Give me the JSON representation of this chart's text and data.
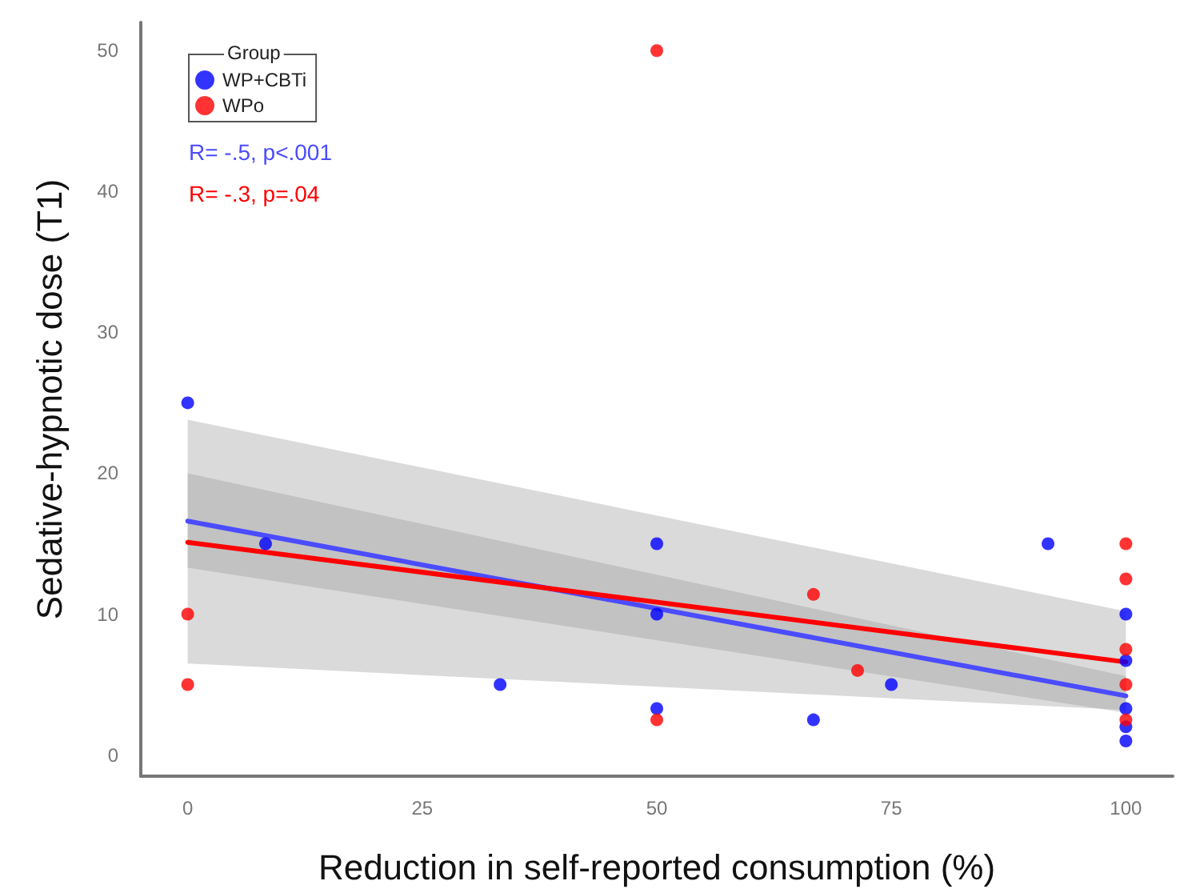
{
  "chart_data": {
    "type": "scatter",
    "xlabel": "Reduction in self-reported consumption (%)",
    "ylabel": "Sedative-hypnotic dose (T1)",
    "legend_title": "Group",
    "legend": "top left",
    "grid": false,
    "xlim": [
      -5,
      105
    ],
    "xticks": [
      0,
      25,
      50,
      75,
      100
    ],
    "ylim": [
      -1.5,
      52
    ],
    "yticks": [
      0,
      10,
      20,
      30,
      40,
      50
    ],
    "annotations": [
      "R= -.5, p<.001",
      "R= -.3, p=.04"
    ],
    "series": [
      {
        "name": "WP+CBTi",
        "marker": "circle",
        "color": "#0000ff",
        "x": [
          0,
          8.3,
          33.3,
          50,
          50,
          50,
          66.7,
          75,
          91.7,
          100,
          100,
          100,
          100,
          100
        ],
        "values": [
          25,
          15,
          5,
          15,
          10,
          3.3,
          2.5,
          5,
          15,
          10,
          6.7,
          3.3,
          2,
          1
        ]
      },
      {
        "name": "WPo",
        "marker": "circle",
        "color": "#ff0000",
        "x": [
          0,
          0,
          50,
          50,
          66.7,
          71.4,
          100,
          100,
          100,
          100,
          100
        ],
        "values": [
          10,
          5,
          50,
          2.5,
          11.4,
          6,
          15,
          12.5,
          7.5,
          5,
          2.5
        ]
      },
      {
        "type": "line",
        "marker": "none",
        "color": "#4b4bff",
        "x": [
          0,
          100
        ],
        "values": [
          16.6,
          4.2
        ],
        "lower": [
          13.3,
          3
        ],
        "upper": [
          20,
          5.6
        ]
      },
      {
        "type": "line",
        "marker": "none",
        "color": "#ff0000",
        "x": [
          0,
          100
        ],
        "values": [
          15.1,
          6.6
        ],
        "lower": [
          6.5,
          3.2
        ],
        "upper": [
          23.8,
          10.2
        ]
      }
    ]
  }
}
